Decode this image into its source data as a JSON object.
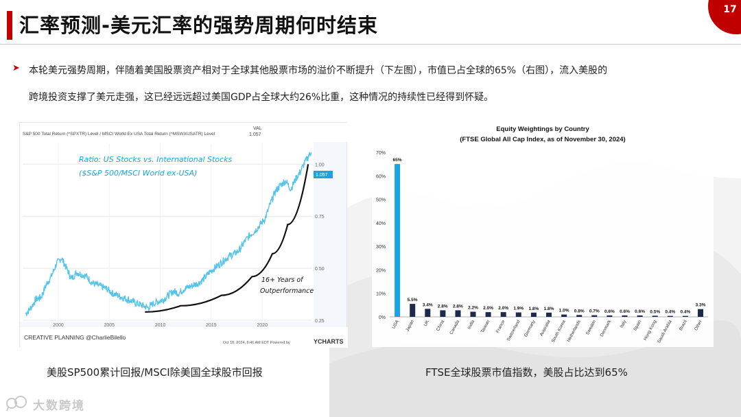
{
  "page": {
    "title": "汇率预测-美元汇率的强势周期何时结束",
    "number": "17",
    "bullet": {
      "line1": "本轮美元强势周期，伴随着美国股票资产相对于全球其他股票市场的溢价不断提升（下左图），市值已占全球的65%（右图），流入美股的",
      "line2": "跨境投资支撑了美元走强，这已经远远超过美国GDP占全球大约26%比重，这种情况的持续性已经得到怀疑。"
    },
    "caption_left": "美股SP500累计回报/MSCI除美国全球股市回报",
    "caption_right": "FTSE全球股票市值指数，美股占比达到65%",
    "logo_text": "大数跨境",
    "colors": {
      "accent": "#c00000",
      "line": "#56c4ea",
      "bar_us": "#1aa3e0",
      "bar_other": "#1d2a4d"
    }
  },
  "chart_data": [
    {
      "type": "line",
      "header": "S&P 500 Total Return (^SPXTR) Level / MSCI World Ex USA Total Return (^MSWXUSATR) Level",
      "val_label": "VAL",
      "val_value": "1.057",
      "last_badge": "1.057",
      "annotation_title": "Ratio: US Stocks vs. International Stocks",
      "annotation_sub": "($S&P 500/MSCI World ex-USA)",
      "annotation_trend_1": "16+ Years of",
      "annotation_trend_2": "Outperformance",
      "x_ticks": [
        "2000",
        "2005",
        "2010",
        "2015",
        "2020"
      ],
      "y_ticks": [
        "1.00",
        "0.75",
        "0.50",
        "0.25"
      ],
      "xlim": [
        1996.5,
        2024.9
      ],
      "ylim": [
        0.25,
        1.1
      ],
      "ytick_values": [
        1.0,
        0.75,
        0.5,
        0.25
      ],
      "xtick_values": [
        2000,
        2005,
        2010,
        2015,
        2020
      ],
      "series": [
        {
          "x": [
            1996.8,
            1997.3,
            1997.8,
            1998.3,
            1998.8,
            1999.3,
            1999.8,
            2000.3,
            2000.8,
            2001.3,
            2001.8,
            2002.3,
            2002.8,
            2003.3,
            2003.8,
            2004.3,
            2004.8,
            2005.3,
            2005.8,
            2006.3,
            2006.8,
            2007.3,
            2007.8,
            2008.3,
            2008.8,
            2009.3,
            2009.8,
            2010.3,
            2010.8,
            2011.3,
            2011.8,
            2012.3,
            2012.8,
            2013.3,
            2013.8,
            2014.3,
            2014.8,
            2015.3,
            2015.8,
            2016.3,
            2016.8,
            2017.3,
            2017.8,
            2018.3,
            2018.8,
            2019.3,
            2019.8,
            2020.3,
            2020.8,
            2021.3,
            2021.8,
            2022.3,
            2022.8,
            2023.3,
            2023.8,
            2024.3,
            2024.8
          ],
          "y": [
            0.28,
            0.31,
            0.35,
            0.36,
            0.42,
            0.46,
            0.52,
            0.55,
            0.5,
            0.45,
            0.48,
            0.47,
            0.46,
            0.43,
            0.42,
            0.41,
            0.4,
            0.38,
            0.37,
            0.36,
            0.35,
            0.34,
            0.33,
            0.32,
            0.31,
            0.33,
            0.34,
            0.35,
            0.37,
            0.39,
            0.38,
            0.4,
            0.41,
            0.42,
            0.43,
            0.45,
            0.48,
            0.5,
            0.52,
            0.54,
            0.56,
            0.57,
            0.59,
            0.63,
            0.66,
            0.68,
            0.71,
            0.74,
            0.81,
            0.87,
            0.9,
            0.92,
            0.88,
            0.93,
            0.97,
            1.02,
            1.057
          ]
        }
      ],
      "trend": {
        "x": [
          2008.5,
          2012,
          2016,
          2019,
          2021,
          2022.5,
          2024.5
        ],
        "y": [
          0.29,
          0.32,
          0.37,
          0.46,
          0.57,
          0.71,
          1.0
        ]
      },
      "footer_left": "CREATIVE PLANNING @CharlieBilello",
      "footer_date": "Oct 18, 2024, 8:46 AM EDT Powered by",
      "footer_brand": "YCHARTS"
    },
    {
      "type": "bar",
      "title": "Equity Weightings by Country",
      "subtitle": "(FTSE Global All Cap Index, as of November 30, 2024)",
      "categories": [
        "USA",
        "Japan",
        "UK",
        "China",
        "Canada",
        "India",
        "Taiwan",
        "France",
        "Switzerland",
        "Germany",
        "Australia",
        "South Korea",
        "Netherlands",
        "Sweden",
        "Denmark",
        "Italy",
        "Spain",
        "Hong Kong",
        "Saudi Arabia",
        "Brazil",
        "Other"
      ],
      "values": [
        65,
        5.5,
        3.4,
        2.8,
        2.8,
        2.2,
        2.0,
        2.0,
        1.9,
        1.8,
        1.8,
        1.0,
        0.8,
        0.7,
        0.6,
        0.6,
        0.6,
        0.5,
        0.4,
        0.4,
        3.3
      ],
      "value_labels": [
        "65%",
        "5.5%",
        "3.4%",
        "2.8%",
        "2.8%",
        "2.2%",
        "2.0%",
        "2.0%",
        "1.9%",
        "1.8%",
        "1.8%",
        "1.0%",
        "0.8%",
        "0.7%",
        "0.6%",
        "0.6%",
        "0.6%",
        "0.5%",
        "0.4%",
        "0.4%",
        "3.3%"
      ],
      "y_ticks": [
        "0%",
        "10%",
        "20%",
        "30%",
        "40%",
        "50%",
        "60%",
        "70%"
      ],
      "ytick_values": [
        0,
        10,
        20,
        30,
        40,
        50,
        60,
        70
      ],
      "ylim": [
        0,
        70
      ]
    }
  ]
}
